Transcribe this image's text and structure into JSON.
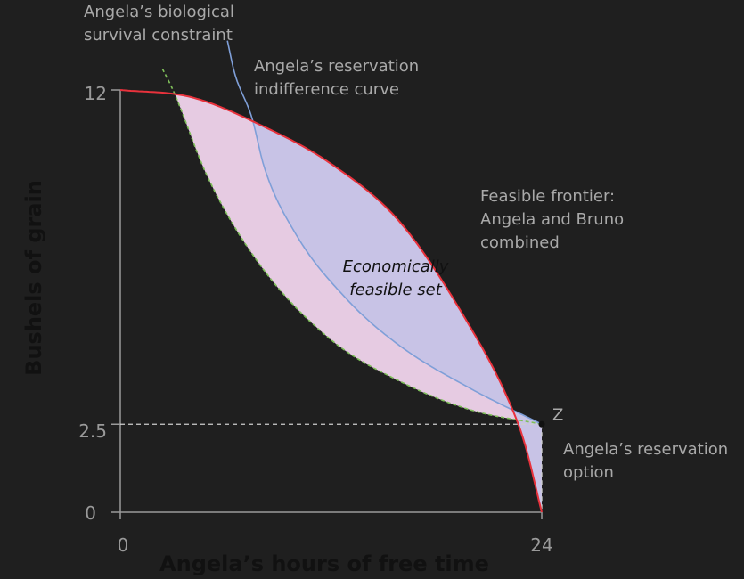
{
  "chart_data": {
    "type": "area",
    "xlabel": "Angela’s hours of free time",
    "ylabel": "Bushels of grain",
    "xlim": [
      0,
      24
    ],
    "ylim": [
      0,
      12
    ],
    "x_ticks": [
      {
        "value": 0,
        "label": "0"
      },
      {
        "value": 24,
        "label": "24"
      }
    ],
    "y_ticks": [
      {
        "value": 0,
        "label": "0"
      },
      {
        "value": 2.5,
        "label": "2.5"
      },
      {
        "value": 12,
        "label": "12"
      }
    ],
    "curves": {
      "frontier": {
        "x": [
          0,
          4,
          8,
          12,
          16,
          20,
          22,
          23,
          24
        ],
        "y": [
          12,
          11.8,
          11.0,
          9.9,
          8.2,
          5.2,
          3.3,
          2.0,
          0
        ]
      },
      "survival": {
        "x": [
          2.4,
          3.0,
          5.0,
          8.0,
          12.0,
          16.0,
          20.0,
          24.0
        ],
        "y": [
          12.6,
          12.0,
          9.5,
          7.0,
          4.9,
          3.7,
          2.9,
          2.5
        ]
      },
      "reservation": {
        "x": [
          6.1,
          6.5,
          7.5,
          8.2,
          10.0,
          13.0,
          16.0,
          20.0,
          24.0
        ],
        "y": [
          13.4,
          12.5,
          11.2,
          9.8,
          7.9,
          6.0,
          4.7,
          3.5,
          2.5
        ]
      }
    },
    "point_z": {
      "x": 24,
      "y": 2.5,
      "label": "Z"
    },
    "colors": {
      "frontier": "#e8323c",
      "survival": "#7fbf5a",
      "reservation": "#7f9fd8",
      "pink_fill": "#e6cbe2",
      "purple_fill": "#c8c3e6",
      "axis": "#9a9a9a",
      "dashed_guides": "#cfcfcf"
    },
    "annotations": {
      "survival_line1": "Angela’s biological",
      "survival_line2": "survival constraint",
      "reservation_line1": "Angela’s reservation",
      "reservation_line2": "indifference curve",
      "frontier_line1": "Feasible frontier:",
      "frontier_line2": "Angela and Bruno",
      "frontier_line3": "combined",
      "feasible_line1": "Economically",
      "feasible_line2": "feasible set",
      "option_line1": "Angela’s reservation",
      "option_line2": "option"
    }
  }
}
